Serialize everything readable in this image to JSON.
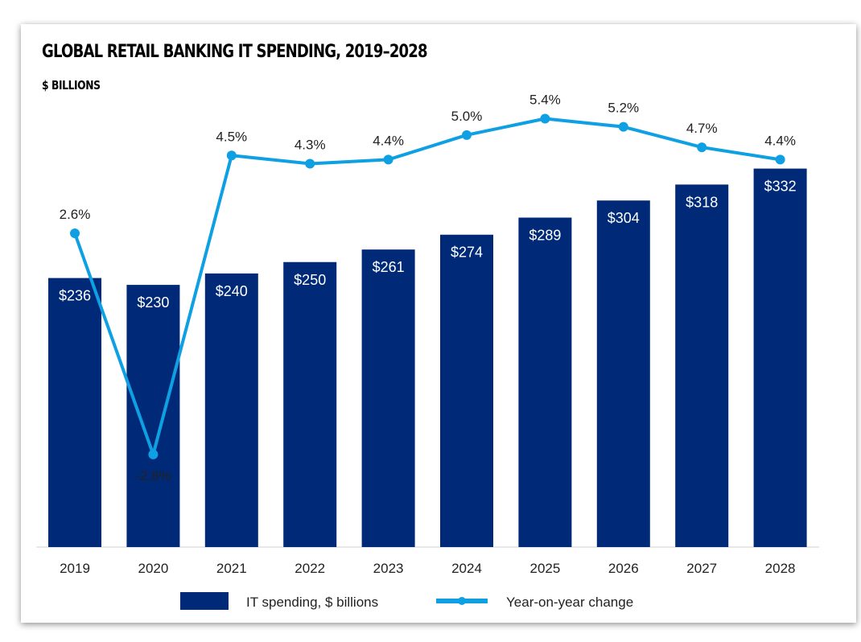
{
  "chart_data": {
    "type": "bar+line",
    "title": "GLOBAL RETAIL BANKING IT SPENDING, 2019–2028",
    "subtitle": "$ BILLIONS",
    "categories": [
      "2019",
      "2020",
      "2021",
      "2022",
      "2023",
      "2024",
      "2025",
      "2026",
      "2027",
      "2028"
    ],
    "series": [
      {
        "name": "IT spending, $ billions",
        "type": "bar",
        "values": [
          236,
          230,
          240,
          250,
          261,
          274,
          289,
          304,
          318,
          332
        ],
        "labels": [
          "$236",
          "$230",
          "$240",
          "$250",
          "$261",
          "$274",
          "$289",
          "$304",
          "$318",
          "$332"
        ],
        "color": "#002a78"
      },
      {
        "name": "Year-on-year change",
        "type": "line",
        "values": [
          2.6,
          -2.8,
          4.5,
          4.3,
          4.4,
          5.0,
          5.4,
          5.2,
          4.7,
          4.4
        ],
        "labels": [
          "2.6%",
          "-2.8%",
          "4.5%",
          "4.3%",
          "4.4%",
          "5.0%",
          "5.4%",
          "5.2%",
          "4.7%",
          "4.4%"
        ],
        "color": "#0ea0e2"
      }
    ],
    "grid": false,
    "legend": "bottom"
  }
}
